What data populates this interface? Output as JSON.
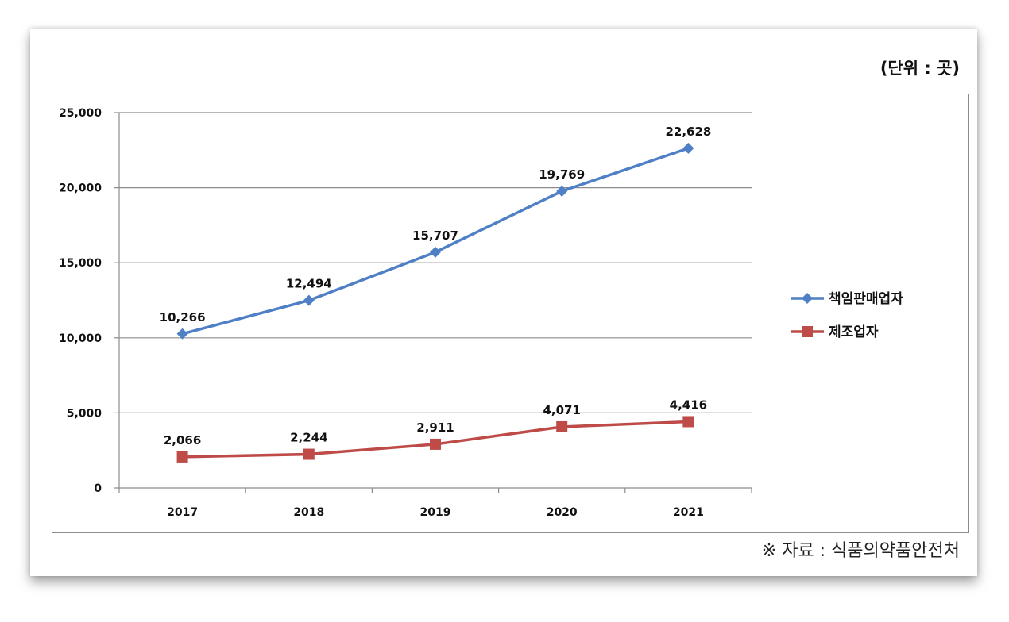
{
  "unit_label": "(단위 : 곳)",
  "source_note": "※ 자료 : 식품의약품안전처",
  "colors": {
    "series1": "#4f7fc4",
    "series2": "#be4b48",
    "grid": "#8c8c8c"
  },
  "chart_data": {
    "type": "line",
    "title": "",
    "xlabel": "",
    "ylabel": "",
    "categories": [
      "2017",
      "2018",
      "2019",
      "2020",
      "2021"
    ],
    "ylim": [
      0,
      25000
    ],
    "yticks": [
      0,
      5000,
      10000,
      15000,
      20000,
      25000
    ],
    "ytick_labels": [
      "0",
      "5,000",
      "10,000",
      "15,000",
      "20,000",
      "25,000"
    ],
    "grid": true,
    "legend_position": "right",
    "series": [
      {
        "name": "책임판매업자",
        "marker": "diamond",
        "values": [
          10266,
          12494,
          15707,
          19769,
          22628
        ],
        "labels": [
          "10,266",
          "12,494",
          "15,707",
          "19,769",
          "22,628"
        ]
      },
      {
        "name": "제조업자",
        "marker": "square",
        "values": [
          2066,
          2244,
          2911,
          4071,
          4416
        ],
        "labels": [
          "2,066",
          "2,244",
          "2,911",
          "4,071",
          "4,416"
        ]
      }
    ]
  }
}
